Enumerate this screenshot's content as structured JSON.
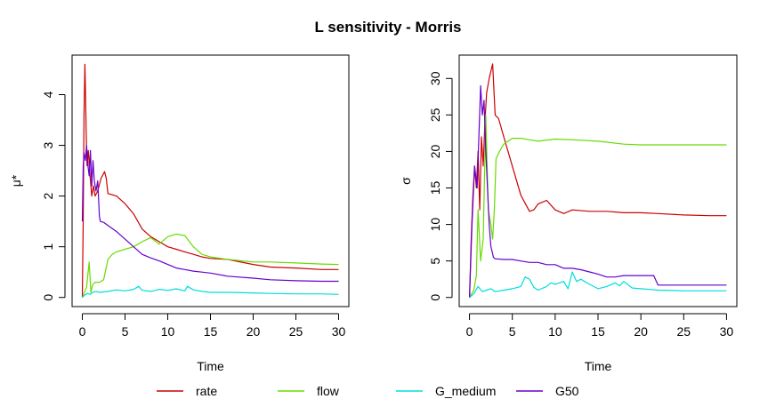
{
  "title": "L sensitivity - Morris",
  "legend": {
    "placement": "bottom",
    "entries": [
      {
        "label": "rate",
        "color": "#cc0000"
      },
      {
        "label": "flow",
        "color": "#66dd00"
      },
      {
        "label": "G_medium",
        "color": "#00dddd"
      },
      {
        "label": "G50",
        "color": "#6600cc"
      }
    ]
  },
  "chart_data": [
    {
      "type": "line",
      "xlabel": "Time",
      "ylabel": "μ*",
      "xlim": [
        -1.2,
        31.2
      ],
      "ylim": [
        -0.18,
        4.78
      ],
      "xticks": [
        0,
        5,
        10,
        15,
        20,
        25,
        30
      ],
      "yticks": [
        0,
        1,
        2,
        3,
        4
      ],
      "grid": false,
      "series": [
        {
          "name": "rate",
          "color": "#cc0000",
          "x": [
            0,
            0.1,
            0.2,
            0.3,
            0.35,
            0.45,
            0.55,
            0.7,
            0.9,
            1.1,
            1.3,
            1.5,
            1.8,
            2.2,
            2.6,
            2.8,
            3.0,
            4,
            5,
            6,
            7,
            8,
            9,
            10,
            11,
            12,
            13,
            14,
            15,
            17,
            20,
            22,
            25,
            28,
            30
          ],
          "y": [
            0.0,
            1.5,
            3.6,
            4.6,
            4.2,
            3.3,
            2.6,
            2.9,
            2.4,
            2.0,
            2.2,
            2.0,
            2.1,
            2.35,
            2.48,
            2.35,
            2.05,
            2.0,
            1.85,
            1.65,
            1.35,
            1.2,
            1.1,
            1.0,
            0.95,
            0.9,
            0.85,
            0.8,
            0.77,
            0.75,
            0.65,
            0.6,
            0.58,
            0.55,
            0.55
          ]
        },
        {
          "name": "flow",
          "color": "#66dd00",
          "x": [
            0,
            0.5,
            0.8,
            1.0,
            1.2,
            1.5,
            2.0,
            2.5,
            3.0,
            3.5,
            4.0,
            5,
            6,
            7,
            8,
            9,
            10,
            11,
            12,
            13,
            14,
            15,
            17,
            20,
            22,
            25,
            28,
            30
          ],
          "y": [
            0.0,
            0.2,
            0.7,
            0.1,
            0.25,
            0.3,
            0.3,
            0.35,
            0.75,
            0.85,
            0.9,
            0.95,
            1.0,
            1.1,
            1.18,
            1.05,
            1.2,
            1.25,
            1.22,
            1.0,
            0.85,
            0.8,
            0.75,
            0.7,
            0.7,
            0.68,
            0.66,
            0.65
          ]
        },
        {
          "name": "G_medium",
          "color": "#00dddd",
          "x": [
            0,
            0.3,
            0.6,
            0.9,
            1.2,
            1.6,
            2.0,
            3,
            4,
            5,
            6,
            6.6,
            7,
            8,
            9,
            10,
            11,
            12,
            12.3,
            13,
            14,
            15,
            17,
            20,
            22,
            25,
            28,
            30
          ],
          "y": [
            0.0,
            0.05,
            0.08,
            0.06,
            0.1,
            0.12,
            0.1,
            0.12,
            0.15,
            0.13,
            0.16,
            0.22,
            0.14,
            0.12,
            0.16,
            0.14,
            0.17,
            0.13,
            0.22,
            0.15,
            0.12,
            0.1,
            0.1,
            0.09,
            0.08,
            0.07,
            0.07,
            0.06
          ]
        },
        {
          "name": "G50",
          "color": "#6600cc",
          "x": [
            0,
            0.1,
            0.2,
            0.35,
            0.5,
            0.65,
            0.8,
            0.95,
            1.1,
            1.25,
            1.4,
            1.6,
            1.8,
            2.0,
            2.1,
            2.5,
            3,
            4,
            5,
            6,
            7,
            8,
            9,
            10,
            11,
            12,
            13,
            14,
            15,
            17,
            20,
            22,
            25,
            28,
            30
          ],
          "y": [
            1.5,
            2.6,
            2.85,
            2.7,
            3.0,
            2.6,
            2.4,
            2.9,
            2.2,
            2.7,
            2.3,
            2.1,
            2.3,
            1.6,
            1.5,
            1.48,
            1.42,
            1.3,
            1.15,
            1.0,
            0.85,
            0.78,
            0.72,
            0.65,
            0.58,
            0.55,
            0.52,
            0.5,
            0.48,
            0.42,
            0.38,
            0.35,
            0.33,
            0.32,
            0.32
          ]
        }
      ]
    },
    {
      "type": "line",
      "xlabel": "Time",
      "ylabel": "σ",
      "xlim": [
        -1.2,
        31.2
      ],
      "ylim": [
        -1.25,
        33.2
      ],
      "xticks": [
        0,
        5,
        10,
        15,
        20,
        25,
        30
      ],
      "yticks": [
        0,
        5,
        10,
        15,
        20,
        25,
        30
      ],
      "grid": false,
      "series": [
        {
          "name": "rate",
          "color": "#cc0000",
          "x": [
            0,
            0.2,
            0.4,
            0.6,
            0.8,
            1.0,
            1.2,
            1.4,
            1.6,
            1.8,
            2.0,
            2.3,
            2.7,
            3.0,
            3.4,
            4,
            5,
            6,
            7,
            7.5,
            8,
            9,
            10,
            11,
            12,
            14,
            16,
            18,
            20,
            22,
            25,
            28,
            30
          ],
          "y": [
            0,
            8,
            14,
            18,
            15,
            20,
            12,
            22,
            18,
            24,
            28,
            30,
            32,
            25,
            24.5,
            22,
            18,
            14,
            11.8,
            12,
            12.8,
            13.3,
            12,
            11.5,
            12,
            11.8,
            11.8,
            11.6,
            11.6,
            11.5,
            11.3,
            11.2,
            11.2
          ]
        },
        {
          "name": "flow",
          "color": "#66dd00",
          "x": [
            0,
            0.5,
            0.8,
            1.0,
            1.3,
            1.6,
            1.9,
            2.2,
            2.5,
            2.7,
            2.9,
            3.1,
            3.5,
            4,
            5,
            6,
            7,
            8,
            10,
            12,
            15,
            18,
            20,
            22,
            25,
            28,
            30
          ],
          "y": [
            0,
            1,
            3,
            12,
            5,
            8,
            25,
            12,
            10,
            8,
            12,
            19,
            20,
            21,
            21.8,
            21.8,
            21.6,
            21.4,
            21.7,
            21.6,
            21.4,
            21,
            20.9,
            20.9,
            20.9,
            20.9,
            20.9
          ]
        },
        {
          "name": "G_medium",
          "color": "#00dddd",
          "x": [
            0,
            0.5,
            1.0,
            1.5,
            2.0,
            2.5,
            3.0,
            4,
            5,
            6,
            6.5,
            7,
            7.5,
            8,
            9,
            9.5,
            10,
            11,
            11.5,
            12,
            12.5,
            13,
            14,
            15,
            16,
            17,
            17.5,
            18,
            19,
            20,
            21,
            22,
            25,
            28,
            30
          ],
          "y": [
            0,
            0.5,
            1.5,
            0.8,
            1.0,
            1.2,
            0.8,
            1.0,
            1.2,
            1.5,
            2.8,
            2.5,
            1.4,
            1.0,
            1.5,
            2.0,
            1.8,
            2.2,
            1.2,
            3.5,
            2.2,
            2.5,
            1.8,
            1.2,
            1.5,
            2.0,
            1.6,
            2.2,
            1.3,
            1.2,
            1.1,
            1.0,
            0.9,
            0.9,
            0.9
          ]
        },
        {
          "name": "G50",
          "color": "#6600cc",
          "x": [
            0,
            0.3,
            0.6,
            0.9,
            1.1,
            1.3,
            1.5,
            1.7,
            1.9,
            2.1,
            2.3,
            2.5,
            2.8,
            3.0,
            4,
            5,
            6,
            7,
            8,
            9,
            10,
            11,
            12,
            13,
            14,
            15,
            16,
            17,
            18,
            20,
            21.5,
            22,
            25,
            28,
            30
          ],
          "y": [
            0,
            10,
            18,
            15,
            22,
            29,
            25,
            27,
            20,
            15,
            10,
            7,
            5.5,
            5.3,
            5.2,
            5.2,
            5.0,
            4.8,
            4.8,
            4.5,
            4.5,
            4.0,
            4.0,
            3.8,
            3.5,
            3.2,
            2.8,
            2.8,
            3.0,
            3.0,
            3.0,
            1.7,
            1.7,
            1.7,
            1.7
          ]
        }
      ]
    }
  ]
}
